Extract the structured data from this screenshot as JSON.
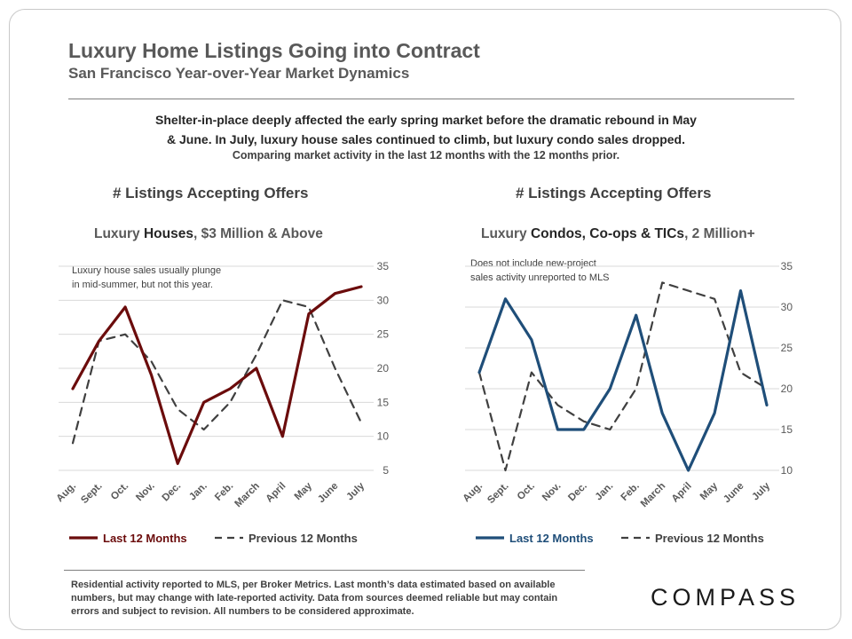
{
  "header": {
    "title": "Luxury Home Listings Going into Contract",
    "subtitle": "San Francisco Year-over-Year  Market Dynamics"
  },
  "summary": {
    "line1": "Shelter-in-place  deeply affected the early spring market before the dramatic rebound in May",
    "line2": "& June. In July, luxury house sales continued to climb, but luxury condo sales dropped.",
    "note": "Comparing market activity in the last 12 months with the 12 months prior."
  },
  "charts": {
    "left": {
      "heading": "# Listings Accepting Offers",
      "sub_prefix": "Luxury ",
      "sub_emphasis": "Houses",
      "sub_suffix": ", $3 Million & Above",
      "note_line1": "Luxury house sales usually plunge",
      "note_line2": "in mid-summer, but not this year."
    },
    "right": {
      "heading": "# Listings Accepting Offers",
      "sub_prefix": "Luxury ",
      "sub_emphasis": "Condos, Co-ops & TICs",
      "sub_suffix": ", 2 Million+",
      "note_line1": "Does not include  new-project",
      "note_line2": "sales activity unreported to MLS"
    }
  },
  "chart_data": [
    {
      "type": "line",
      "categories": [
        "Aug.",
        "Sept.",
        "Oct.",
        "Nov.",
        "Dec.",
        "Jan.",
        "Feb.",
        "March",
        "April",
        "May",
        "June",
        "July"
      ],
      "series": [
        {
          "name": "Last 12 Months",
          "values": [
            17,
            24,
            29,
            19,
            6,
            15,
            17,
            20,
            10,
            28,
            31,
            32
          ],
          "color": "#6b0c0c",
          "style": "solid"
        },
        {
          "name": "Previous 12 Months",
          "values": [
            9,
            24,
            25,
            21,
            14,
            11,
            15,
            22,
            30,
            29,
            20,
            12
          ],
          "color": "#404040",
          "style": "dashed"
        }
      ],
      "ylim": [
        5,
        35
      ],
      "yticks": [
        5,
        10,
        15,
        20,
        25,
        30,
        35
      ],
      "grid": true,
      "legend": "bottom"
    },
    {
      "type": "line",
      "categories": [
        "Aug.",
        "Sept.",
        "Oct.",
        "Nov.",
        "Dec.",
        "Jan.",
        "Feb.",
        "March",
        "April",
        "May",
        "June",
        "July"
      ],
      "series": [
        {
          "name": "Last 12 Months",
          "values": [
            22,
            31,
            26,
            15,
            15,
            20,
            29,
            17,
            10,
            17,
            32,
            18
          ],
          "color": "#1f4e79",
          "style": "solid"
        },
        {
          "name": "Previous 12 Months",
          "values": [
            22,
            10,
            22,
            18,
            16,
            15,
            20,
            33,
            32,
            31,
            22,
            20
          ],
          "color": "#404040",
          "style": "dashed"
        }
      ],
      "ylim": [
        10,
        35
      ],
      "yticks": [
        10,
        15,
        20,
        25,
        30,
        35
      ],
      "grid": true,
      "legend": "bottom"
    }
  ],
  "footer": {
    "text": "Residential activity reported to MLS, per Broker Metrics. Last month’s data estimated based on available numbers, but may change with late-reported activity. Data from sources deemed reliable but may contain errors and subject to revision. All numbers to be considered approximate."
  },
  "logo": {
    "text": "COMPASS"
  }
}
